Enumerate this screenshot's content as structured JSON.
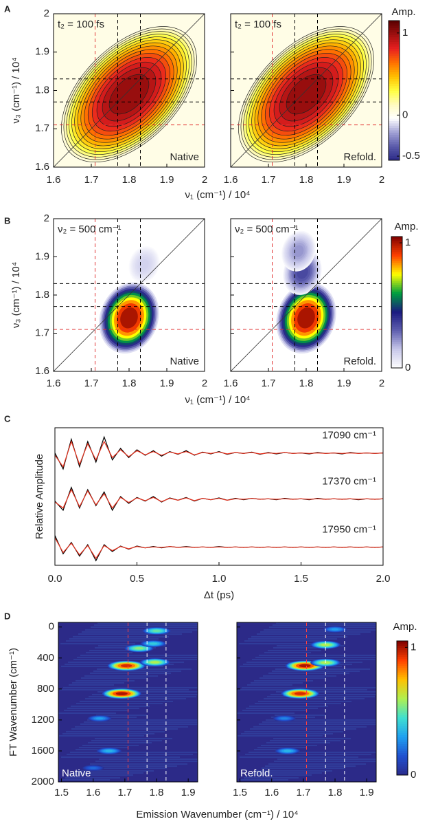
{
  "chart_data": [
    {
      "panel_label": "A",
      "type": "contour",
      "xlabel": "ν₁ (cm⁻¹) / 10⁴",
      "ylabel": "ν₃ (cm⁻¹) / 10⁴",
      "xlim": [
        1.6,
        2
      ],
      "ylim": [
        1.6,
        2
      ],
      "xticks": [
        1.6,
        1.7,
        1.8,
        1.9,
        2
      ],
      "yticks": [
        1.6,
        1.7,
        1.8,
        1.9,
        2
      ],
      "background": "#fffde6",
      "diagonal": true,
      "guide_axes": [
        "x",
        "y"
      ],
      "guides": [
        {
          "value": 1.71,
          "color": "#e03030"
        },
        {
          "value": 1.77,
          "color": "#000000"
        },
        {
          "value": 1.83,
          "color": "#000000"
        }
      ],
      "colorbar": {
        "label": "Amp.",
        "lim": [
          -0.55,
          1.15
        ],
        "ticks": [
          1,
          0,
          -0.5
        ],
        "colors": [
          "#2b2a87",
          "#5a5aaa",
          "#a0a0d4",
          "#ffffff",
          "#fffbc0",
          "#ffff40",
          "#ffc000",
          "#ff7000",
          "#e82020",
          "#a01010",
          "#5a0000"
        ]
      },
      "plots": [
        {
          "corner_text": "t₂ = 100 fs",
          "label": "Native",
          "peaks": [
            {
              "x": 1.8,
              "y": 1.79,
              "amp": 1
            }
          ]
        },
        {
          "corner_text": "t₂ = 100 fs",
          "label": "Refold.",
          "peaks": [
            {
              "x": 1.8,
              "y": 1.79,
              "amp": 1
            }
          ]
        }
      ]
    },
    {
      "panel_label": "B",
      "type": "filled",
      "xlabel": "ν₁ (cm⁻¹) / 10⁴",
      "ylabel": "ν₃ (cm⁻¹) / 10⁴",
      "xlim": [
        1.6,
        2
      ],
      "ylim": [
        1.6,
        2
      ],
      "xticks": [
        1.6,
        1.7,
        1.8,
        1.9,
        2
      ],
      "yticks": [
        1.6,
        1.7,
        1.8,
        1.9,
        2
      ],
      "background": "#ffffff",
      "diagonal": true,
      "guide_axes": [
        "x",
        "y"
      ],
      "guides": [
        {
          "value": 1.71,
          "color": "#e03030"
        },
        {
          "value": 1.77,
          "color": "#000000"
        },
        {
          "value": 1.83,
          "color": "#000000"
        }
      ],
      "colorbar": {
        "label": "Amp.",
        "lim": [
          0,
          1.05
        ],
        "ticks": [
          1,
          0
        ],
        "colors": [
          "#ffffff",
          "#c8c8ea",
          "#6060b0",
          "#1a1a80",
          "#00a040",
          "#ffff00",
          "#ff4000",
          "#800000"
        ]
      },
      "plots": [
        {
          "corner_text": "ν₂ = 500 cm⁻¹",
          "label": "Native",
          "peaks": [
            {
              "x": 1.8,
              "y": 1.74,
              "amp": 1
            },
            {
              "x": 1.84,
              "y": 1.88,
              "amp": 0.12
            }
          ]
        },
        {
          "corner_text": "ν₂ = 500 cm⁻¹",
          "label": "Refold.",
          "peaks": [
            {
              "x": 1.8,
              "y": 1.74,
              "amp": 1
            },
            {
              "x": 1.79,
              "y": 1.86,
              "amp": 0.35
            },
            {
              "x": 1.78,
              "y": 1.915,
              "amp": 0.22
            }
          ]
        }
      ]
    },
    {
      "panel_label": "C",
      "type": "line",
      "xlabel": "Δt (ps)",
      "ylabel": "Relative Amplitude",
      "xlim": [
        0,
        2
      ],
      "ylim": [
        0.1,
        3.1
      ],
      "xticks": [
        {
          "value": 0,
          "label": "0.0"
        },
        0.5,
        {
          "value": 1,
          "label": "1.0"
        },
        1.5,
        {
          "value": 2,
          "label": "2.0"
        }
      ],
      "annotations": [
        "17090 cm⁻¹",
        "17370 cm⁻¹",
        "17950 cm⁻¹"
      ],
      "x": [
        0,
        0.05,
        0.1,
        0.15,
        0.2,
        0.25,
        0.3,
        0.35,
        0.4,
        0.45,
        0.5,
        0.55,
        0.6,
        0.65,
        0.7,
        0.75,
        0.8,
        0.85,
        0.9,
        0.95,
        1,
        1.05,
        1.1,
        1.15,
        1.2,
        1.25,
        1.3,
        1.35,
        1.4,
        1.45,
        1.5,
        1.55,
        1.6,
        1.65,
        1.7,
        1.75,
        1.8,
        1.85,
        1.9,
        1.95,
        2
      ],
      "series": [
        {
          "color": "#000000",
          "values": [
            2.55,
            2.2,
            2.85,
            2.25,
            2.8,
            2.35,
            2.9,
            2.4,
            2.65,
            2.45,
            2.62,
            2.5,
            2.6,
            2.48,
            2.58,
            2.52,
            2.6,
            2.5,
            2.57,
            2.53,
            2.58,
            2.52,
            2.56,
            2.54,
            2.57,
            2.52,
            2.56,
            2.53,
            2.56,
            2.54,
            2.55,
            2.53,
            2.56,
            2.54,
            2.55,
            2.53,
            2.56,
            2.54,
            2.55,
            2.54,
            2.55
          ]
        },
        {
          "color": "#e8321e",
          "values": [
            2.5,
            2.25,
            2.8,
            2.3,
            2.75,
            2.4,
            2.8,
            2.45,
            2.62,
            2.47,
            2.6,
            2.51,
            2.58,
            2.5,
            2.57,
            2.53,
            2.58,
            2.51,
            2.56,
            2.54,
            2.57,
            2.53,
            2.56,
            2.54,
            2.56,
            2.53,
            2.55,
            2.54,
            2.56,
            2.54,
            2.55,
            2.54,
            2.55,
            2.54,
            2.55,
            2.54,
            2.55,
            2.54,
            2.55,
            2.54,
            2.55
          ]
        },
        {
          "color": "#000000",
          "values": [
            1.5,
            1.3,
            1.8,
            1.35,
            1.75,
            1.4,
            1.7,
            1.3,
            1.6,
            1.45,
            1.58,
            1.5,
            1.6,
            1.48,
            1.57,
            1.52,
            1.58,
            1.5,
            1.56,
            1.53,
            1.57,
            1.52,
            1.56,
            1.53,
            1.56,
            1.54,
            1.55,
            1.53,
            1.56,
            1.54,
            1.55,
            1.53,
            1.56,
            1.54,
            1.55,
            1.54,
            1.55,
            1.53,
            1.55,
            1.54,
            1.55
          ]
        },
        {
          "color": "#e8321e",
          "values": [
            1.48,
            1.35,
            1.75,
            1.38,
            1.72,
            1.42,
            1.66,
            1.35,
            1.58,
            1.47,
            1.57,
            1.51,
            1.58,
            1.49,
            1.56,
            1.52,
            1.57,
            1.51,
            1.56,
            1.53,
            1.56,
            1.52,
            1.55,
            1.54,
            1.56,
            1.54,
            1.55,
            1.54,
            1.55,
            1.54,
            1.55,
            1.54,
            1.55,
            1.54,
            1.55,
            1.54,
            1.55,
            1.54,
            1.55,
            1.54,
            1.55
          ]
        },
        {
          "color": "#000000",
          "values": [
            0.75,
            0.35,
            0.6,
            0.3,
            0.55,
            0.2,
            0.55,
            0.4,
            0.52,
            0.45,
            0.52,
            0.48,
            0.51,
            0.48,
            0.51,
            0.49,
            0.51,
            0.49,
            0.5,
            0.49,
            0.51,
            0.49,
            0.5,
            0.49,
            0.5,
            0.49,
            0.5,
            0.49,
            0.5,
            0.49,
            0.5,
            0.49,
            0.5,
            0.49,
            0.5,
            0.49,
            0.5,
            0.49,
            0.5,
            0.49,
            0.5
          ]
        },
        {
          "color": "#e8321e",
          "values": [
            0.7,
            0.38,
            0.58,
            0.33,
            0.53,
            0.25,
            0.53,
            0.42,
            0.51,
            0.46,
            0.51,
            0.48,
            0.5,
            0.49,
            0.51,
            0.49,
            0.5,
            0.49,
            0.5,
            0.49,
            0.5,
            0.49,
            0.5,
            0.49,
            0.5,
            0.49,
            0.5,
            0.49,
            0.5,
            0.49,
            0.5,
            0.49,
            0.5,
            0.49,
            0.5,
            0.49,
            0.5,
            0.49,
            0.5,
            0.49,
            0.5
          ]
        }
      ]
    },
    {
      "panel_label": "D",
      "type": "heatmap",
      "xlabel": "Emission Wavenumber (cm⁻¹) / 10⁴",
      "ylabel": "FT Wavenumber (cm⁻¹)",
      "xlim": [
        1.49,
        1.93
      ],
      "ylim": [
        -60,
        2000
      ],
      "invert_y": true,
      "xticks": [
        1.5,
        1.6,
        1.7,
        1.8,
        1.9
      ],
      "yticks": [
        0,
        400,
        800,
        1200,
        1600,
        2000
      ],
      "background": "#2c2a88",
      "diagonal": false,
      "guide_axes": [
        "x"
      ],
      "guides": [
        {
          "value": 1.71,
          "color": "#ff4040"
        },
        {
          "value": 1.77,
          "color": "#ffffff"
        },
        {
          "value": 1.83,
          "color": "#ffffff"
        }
      ],
      "colorbar": {
        "label": "Amp.",
        "lim": [
          0,
          1.05
        ],
        "ticks": [
          1,
          0
        ],
        "colors": [
          "#2a2a8a",
          "#2050d0",
          "#20a0f0",
          "#40e0d0",
          "#b0f050",
          "#ffc000",
          "#ff4000",
          "#800000"
        ]
      },
      "plots": [
        {
          "label": "Native",
          "peaks": [
            {
              "x": 1.69,
              "y": 860,
              "amp": 1
            },
            {
              "x": 1.705,
              "y": 500,
              "amp": 0.95
            },
            {
              "x": 1.795,
              "y": 455,
              "amp": 0.6
            },
            {
              "x": 1.745,
              "y": 275,
              "amp": 0.55
            },
            {
              "x": 1.79,
              "y": 215,
              "amp": 0.4
            },
            {
              "x": 1.8,
              "y": 50,
              "amp": 0.5
            },
            {
              "x": 1.62,
              "y": 1180,
              "amp": 0.3
            },
            {
              "x": 1.65,
              "y": 1600,
              "amp": 0.35
            },
            {
              "x": 1.6,
              "y": 1820,
              "amp": 0.2
            }
          ]
        },
        {
          "label": "Refold.",
          "peaks": [
            {
              "x": 1.69,
              "y": 860,
              "amp": 0.95
            },
            {
              "x": 1.705,
              "y": 500,
              "amp": 1
            },
            {
              "x": 1.77,
              "y": 460,
              "amp": 0.6
            },
            {
              "x": 1.77,
              "y": 230,
              "amp": 0.6
            },
            {
              "x": 1.8,
              "y": 30,
              "amp": 0.3
            },
            {
              "x": 1.64,
              "y": 1180,
              "amp": 0.25
            },
            {
              "x": 1.65,
              "y": 1600,
              "amp": 0.35
            }
          ]
        }
      ]
    }
  ]
}
